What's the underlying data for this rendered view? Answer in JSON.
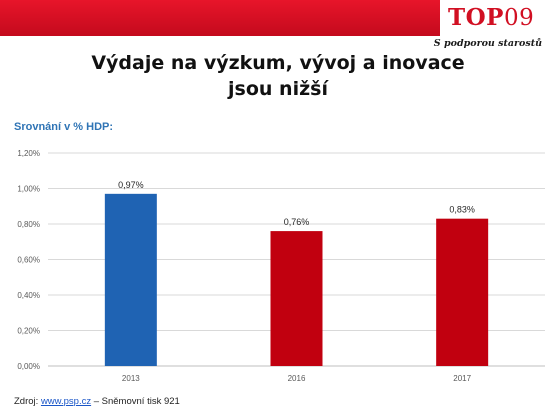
{
  "header": {
    "logo_text": "TOP",
    "logo_number": "09",
    "slogan": "S podporou starostů"
  },
  "title_line1": "Výdaje na výzkum, vývoj a inovace",
  "title_line2": "jsou nižší",
  "subtitle": "Srovnání v % HDP:",
  "source": {
    "prefix": "Zdroj: ",
    "link": "www.psp.cz",
    "suffix": " – Sněmovní tisk 921"
  },
  "colors": {
    "brand_red": "#d10f22",
    "bar_blue": "#1f63b3",
    "bar_red": "#c1000f"
  },
  "chart_data": {
    "type": "bar",
    "categories": [
      "2013",
      "2016",
      "2017"
    ],
    "values": [
      0.97,
      0.76,
      0.83
    ],
    "data_labels": [
      "0,97%",
      "0,76%",
      "0,83%"
    ],
    "bar_colors": [
      "#1f63b3",
      "#c1000f",
      "#c1000f"
    ],
    "ylim": [
      0,
      1.2
    ],
    "yticks": [
      0,
      0.2,
      0.4,
      0.6,
      0.8,
      1.0,
      1.2
    ],
    "ytick_labels": [
      "0,00%",
      "0,20%",
      "0,40%",
      "0,60%",
      "0,80%",
      "1,00%",
      "1,20%"
    ],
    "grid": true
  }
}
